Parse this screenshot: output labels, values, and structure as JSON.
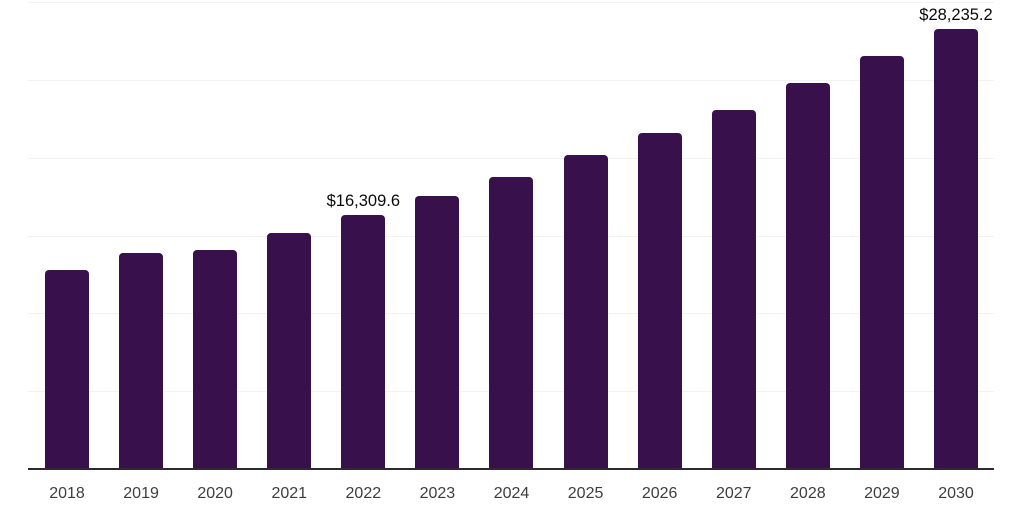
{
  "chart_data": {
    "type": "bar",
    "title": "",
    "xlabel": "",
    "ylabel": "",
    "categories": [
      "2018",
      "2019",
      "2020",
      "2021",
      "2022",
      "2023",
      "2024",
      "2025",
      "2026",
      "2027",
      "2028",
      "2029",
      "2030"
    ],
    "values": [
      12780,
      13880,
      14070,
      15160,
      16309.6,
      17540,
      18790,
      20170,
      21580,
      23060,
      24800,
      26530,
      28235.2
    ],
    "annotations": [
      {
        "category": "2022",
        "text": "$16,309.6"
      },
      {
        "category": "2030",
        "text": "$28,235.2"
      }
    ],
    "ylim": [
      0,
      30000
    ],
    "gridline_interval": 5000,
    "grid": "horizontal",
    "legend": "none",
    "y_axis_labels_visible": false,
    "colors": {
      "bar": "#37104C",
      "gridline": "#f2f2f2",
      "axis_line": "#2b2b2b",
      "tick_label": "#3d3d3d",
      "data_label": "#0a0a0a",
      "background": "#ffffff"
    }
  }
}
